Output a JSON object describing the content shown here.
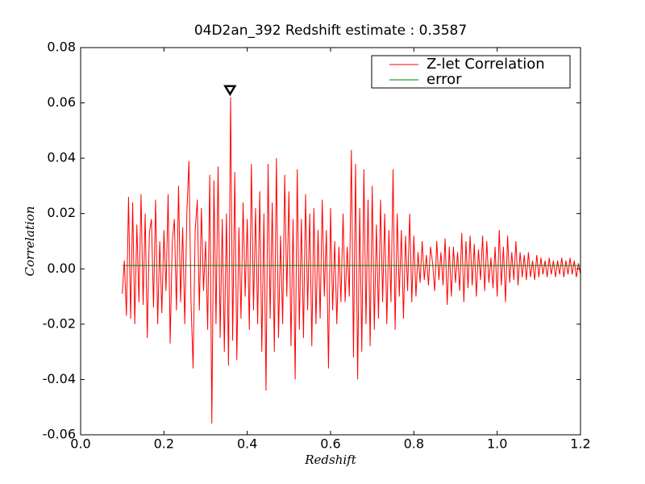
{
  "chart_data": {
    "type": "line",
    "title": "04D2an_392 Redshift estimate : 0.3587",
    "xlabel": "Redshift",
    "ylabel": "Correlation",
    "xlim": [
      0,
      1.2
    ],
    "ylim": [
      -0.06,
      0.08
    ],
    "xticks": [
      {
        "value": 0,
        "label": "0.0"
      },
      0.2,
      0.4,
      0.6,
      0.8,
      {
        "value": 1,
        "label": "1.0"
      },
      1.2
    ],
    "yticks": [
      -0.06,
      -0.04,
      -0.02,
      {
        "value": 0,
        "label": "0.00"
      },
      0.02,
      0.04,
      0.06,
      0.08
    ],
    "legend": "upper right",
    "marker": {
      "x": 0.3587,
      "y": 0.062
    },
    "series": [
      {
        "name": "Z-let Correlation",
        "color": "#ff0000",
        "x": [
          0.1,
          0.105,
          0.11,
          0.115,
          0.12,
          0.125,
          0.13,
          0.135,
          0.14,
          0.145,
          0.15,
          0.155,
          0.16,
          0.165,
          0.17,
          0.175,
          0.18,
          0.185,
          0.19,
          0.195,
          0.2,
          0.205,
          0.21,
          0.215,
          0.22,
          0.225,
          0.23,
          0.235,
          0.24,
          0.245,
          0.25,
          0.255,
          0.26,
          0.265,
          0.27,
          0.275,
          0.28,
          0.285,
          0.29,
          0.295,
          0.3,
          0.305,
          0.31,
          0.315,
          0.32,
          0.325,
          0.33,
          0.335,
          0.34,
          0.345,
          0.35,
          0.355,
          0.36,
          0.365,
          0.37,
          0.375,
          0.38,
          0.385,
          0.39,
          0.395,
          0.4,
          0.405,
          0.41,
          0.415,
          0.42,
          0.425,
          0.43,
          0.435,
          0.44,
          0.445,
          0.45,
          0.455,
          0.46,
          0.465,
          0.47,
          0.475,
          0.48,
          0.485,
          0.49,
          0.495,
          0.5,
          0.505,
          0.51,
          0.515,
          0.52,
          0.525,
          0.53,
          0.535,
          0.54,
          0.545,
          0.55,
          0.555,
          0.56,
          0.565,
          0.57,
          0.575,
          0.58,
          0.585,
          0.59,
          0.595,
          0.6,
          0.605,
          0.61,
          0.615,
          0.62,
          0.625,
          0.63,
          0.635,
          0.64,
          0.645,
          0.65,
          0.655,
          0.66,
          0.665,
          0.67,
          0.675,
          0.68,
          0.685,
          0.69,
          0.695,
          0.7,
          0.705,
          0.71,
          0.715,
          0.72,
          0.725,
          0.73,
          0.735,
          0.74,
          0.745,
          0.75,
          0.755,
          0.76,
          0.765,
          0.77,
          0.775,
          0.78,
          0.785,
          0.79,
          0.795,
          0.8,
          0.805,
          0.81,
          0.815,
          0.82,
          0.825,
          0.83,
          0.835,
          0.84,
          0.845,
          0.85,
          0.855,
          0.86,
          0.865,
          0.87,
          0.875,
          0.88,
          0.885,
          0.89,
          0.895,
          0.9,
          0.905,
          0.91,
          0.915,
          0.92,
          0.925,
          0.93,
          0.935,
          0.94,
          0.945,
          0.95,
          0.955,
          0.96,
          0.965,
          0.97,
          0.975,
          0.98,
          0.985,
          0.99,
          0.995,
          1.0,
          1.005,
          1.01,
          1.015,
          1.02,
          1.025,
          1.03,
          1.035,
          1.04,
          1.045,
          1.05,
          1.055,
          1.06,
          1.065,
          1.07,
          1.075,
          1.08,
          1.085,
          1.09,
          1.095,
          1.1,
          1.105,
          1.11,
          1.115,
          1.12,
          1.125,
          1.13,
          1.135,
          1.14,
          1.145,
          1.15,
          1.155,
          1.16,
          1.165,
          1.17,
          1.175,
          1.18,
          1.185,
          1.19,
          1.195,
          1.2
        ],
        "values": [
          -0.009,
          0.003,
          -0.017,
          0.026,
          -0.018,
          0.024,
          -0.02,
          0.016,
          -0.012,
          0.027,
          -0.013,
          0.02,
          -0.025,
          0.013,
          0.018,
          -0.014,
          0.025,
          -0.02,
          0.01,
          -0.016,
          0.014,
          -0.008,
          0.027,
          -0.027,
          0.01,
          0.018,
          -0.015,
          0.03,
          -0.012,
          0.015,
          -0.02,
          0.02,
          0.039,
          -0.012,
          -0.036,
          0.014,
          0.025,
          -0.015,
          0.022,
          -0.008,
          0.01,
          -0.022,
          0.034,
          -0.056,
          0.032,
          -0.02,
          0.037,
          -0.025,
          0.018,
          -0.03,
          0.02,
          -0.035,
          0.062,
          -0.026,
          0.035,
          -0.033,
          0.015,
          -0.018,
          0.024,
          -0.01,
          0.018,
          -0.022,
          0.038,
          -0.015,
          0.022,
          -0.02,
          0.028,
          -0.03,
          0.02,
          -0.044,
          0.038,
          -0.018,
          0.024,
          -0.03,
          0.04,
          -0.025,
          0.012,
          -0.02,
          0.034,
          -0.01,
          0.028,
          -0.028,
          0.018,
          -0.04,
          0.036,
          -0.022,
          0.018,
          -0.025,
          0.027,
          -0.015,
          0.02,
          -0.028,
          0.022,
          -0.02,
          0.014,
          -0.018,
          0.025,
          -0.01,
          0.014,
          -0.036,
          0.022,
          -0.015,
          0.01,
          -0.02,
          0.008,
          -0.012,
          0.02,
          -0.012,
          0.008,
          -0.01,
          0.043,
          -0.032,
          0.038,
          -0.04,
          0.022,
          -0.03,
          0.036,
          -0.02,
          0.025,
          -0.028,
          0.03,
          -0.022,
          0.016,
          -0.018,
          0.025,
          -0.012,
          0.02,
          -0.02,
          0.014,
          -0.012,
          0.036,
          -0.022,
          0.02,
          -0.01,
          0.014,
          -0.018,
          0.012,
          -0.008,
          0.02,
          -0.012,
          0.012,
          -0.01,
          0.006,
          -0.005,
          0.01,
          -0.004,
          0.005,
          -0.006,
          0.008,
          0.002,
          -0.008,
          0.01,
          -0.004,
          0.006,
          -0.006,
          0.011,
          -0.013,
          0.008,
          -0.01,
          0.008,
          -0.005,
          0.006,
          -0.008,
          0.013,
          -0.012,
          0.01,
          -0.007,
          0.012,
          -0.006,
          0.009,
          -0.01,
          0.007,
          -0.004,
          0.012,
          -0.008,
          0.01,
          -0.005,
          0.004,
          -0.007,
          0.008,
          -0.01,
          0.014,
          -0.006,
          0.008,
          -0.012,
          0.012,
          -0.005,
          0.006,
          -0.004,
          0.01,
          -0.006,
          0.006,
          -0.003,
          0.005,
          -0.004,
          0.006,
          -0.003,
          0.003,
          -0.004,
          0.005,
          -0.003,
          0.004,
          -0.002,
          0.003,
          -0.003,
          0.004,
          -0.002,
          0.003,
          -0.003,
          0.003,
          -0.002,
          0.004,
          -0.003,
          0.003,
          -0.002,
          0.004,
          -0.002,
          0.003,
          -0.003,
          0.002,
          -0.002
        ]
      },
      {
        "name": "error",
        "color": "#008000",
        "x": [
          0.1,
          1.2
        ],
        "values": [
          0.0012,
          0.0012
        ]
      }
    ]
  }
}
